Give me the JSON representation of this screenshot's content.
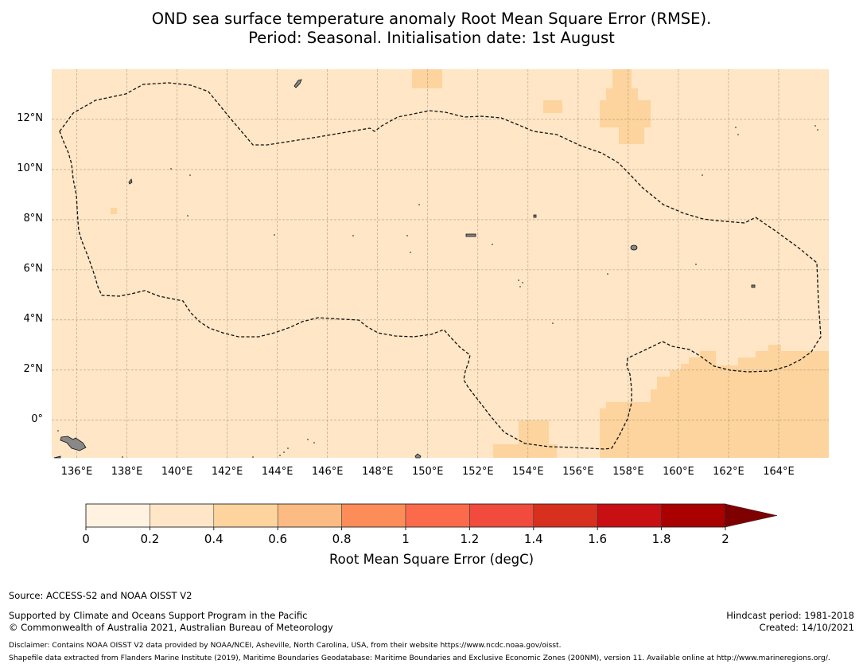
{
  "title": {
    "line1": "OND sea surface temperature anomaly Root Mean Square Error (RMSE).",
    "line2": "Period: Seasonal. Initialisation date: 1st August"
  },
  "map": {
    "lon_range": [
      135,
      166
    ],
    "lat_range": [
      -1.5,
      14
    ],
    "x_ticks": [
      "136°E",
      "138°E",
      "140°E",
      "142°E",
      "144°E",
      "146°E",
      "148°E",
      "150°E",
      "152°E",
      "154°E",
      "156°E",
      "158°E",
      "160°E",
      "162°E",
      "164°E"
    ],
    "y_ticks": [
      "12°N",
      "10°N",
      "8°N",
      "6°N",
      "4°N",
      "2°N",
      "0°"
    ],
    "background_class_color": "#fee6c6",
    "higher_class_color": "#fdd49e",
    "boundary": "dashed black EEZ outline",
    "grid": true
  },
  "colorbar": {
    "tick_labels": [
      "0",
      "0.2",
      "0.4",
      "0.6",
      "0.8",
      "1",
      "1.2",
      "1.4",
      "1.6",
      "1.8",
      "2"
    ],
    "colors": [
      "#fff2e0",
      "#fee6c6",
      "#fdd49e",
      "#fdbb84",
      "#fc8d59",
      "#fb6b4b",
      "#f04b3c",
      "#d7301f",
      "#c70f14",
      "#a90000",
      "#7f0000"
    ],
    "extend": "max",
    "label": "Root Mean Square Error (degC)"
  },
  "footer": {
    "source": "Source: ACCESS-S2 and NOAA OISST V2",
    "supported": "Supported by Climate and Oceans Support Program in the Pacific",
    "copyright": "© Commonwealth of Australia 2021, Australian Bureau of Meteorology",
    "hindcast": "Hindcast period: 1981-2018",
    "created": "Created: 14/10/2021",
    "disclaimer": "Disclaimer: Contains NOAA OISST V2 data provided by NOAA/NCEI, Asheville, North Carolina, USA, from their website https://www.ncdc.noaa.gov/oisst.",
    "shapefile": "Shapefile data extracted from Flanders Marine Institute (2019), Maritime Boundaries Geodatabase: Maritime Boundaries and Exclusive Economic Zones (200NM), version 11. Available online at http://www.marineregions.org/."
  }
}
